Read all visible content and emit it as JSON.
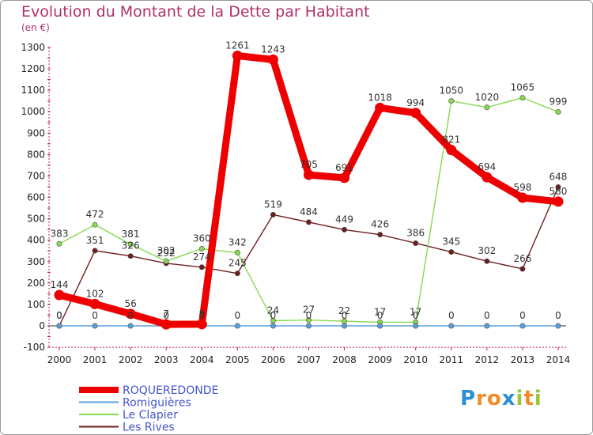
{
  "header": {
    "title": "Evolution du Montant de la Dette par Habitant",
    "subtitle": "(en €)"
  },
  "logo": {
    "letters": [
      "P",
      "r",
      "o",
      "x",
      "i",
      "t",
      "i"
    ],
    "colors": [
      "#2a8fd8",
      "#f28c28",
      "#f28c28",
      "#2a8fd8",
      "#9bc43a",
      "#f28c28",
      "#9bc43a"
    ]
  },
  "chart_data": {
    "type": "line",
    "x": [
      "2000",
      "2001",
      "2002",
      "2003",
      "2004",
      "2005",
      "2006",
      "2007",
      "2008",
      "2009",
      "2010",
      "2011",
      "2012",
      "2013",
      "2014"
    ],
    "ylim": [
      -100,
      1300
    ],
    "yticks": [
      "-100",
      "0",
      "100",
      "200",
      "300",
      "400",
      "500",
      "600",
      "700",
      "800",
      "900",
      "1000",
      "1100",
      "1200",
      "1300"
    ],
    "grid": false,
    "legend_position": "bottom-left",
    "series": [
      {
        "name": "ROQUEREDONDE",
        "color": "#ee0000",
        "values": [
          144,
          102,
          56,
          7,
          8,
          1261,
          1243,
          705,
          691,
          1018,
          994,
          821,
          694,
          598,
          580
        ],
        "labels": [
          "144",
          "102",
          "56",
          "7",
          "8",
          "1261",
          "1243",
          "705",
          "691",
          "1018",
          "994",
          "821",
          "694",
          "598",
          "580"
        ]
      },
      {
        "name": "Romiguières",
        "color": "#5aa0d8",
        "values": [
          0,
          0,
          0,
          0,
          0,
          0,
          0,
          0,
          0,
          0,
          0,
          0,
          0,
          0,
          0
        ],
        "labels": [
          "0",
          "0",
          "0",
          "0",
          "0",
          "0",
          "0",
          "0",
          "0",
          "0",
          "0",
          "0",
          "0",
          "0",
          "0"
        ]
      },
      {
        "name": "Le Clapier",
        "color": "#88d850",
        "values": [
          383,
          472,
          381,
          302,
          360,
          342,
          24,
          27,
          22,
          17,
          17,
          1050,
          1020,
          1065,
          999
        ],
        "labels": [
          "383",
          "472",
          "381",
          "302",
          "360",
          "342",
          "24",
          "27",
          "22",
          "17",
          "17",
          "1050",
          "1020",
          "1065",
          "999"
        ]
      },
      {
        "name": "Les Rives",
        "color": "#6e1e1e",
        "values": [
          0,
          351,
          326,
          292,
          274,
          245,
          519,
          484,
          449,
          426,
          386,
          345,
          302,
          266,
          648
        ],
        "labels": [
          "0",
          "351",
          "326",
          "292",
          "274",
          "245",
          "519",
          "484",
          "449",
          "426",
          "386",
          "345",
          "302",
          "266",
          "648"
        ]
      }
    ]
  }
}
